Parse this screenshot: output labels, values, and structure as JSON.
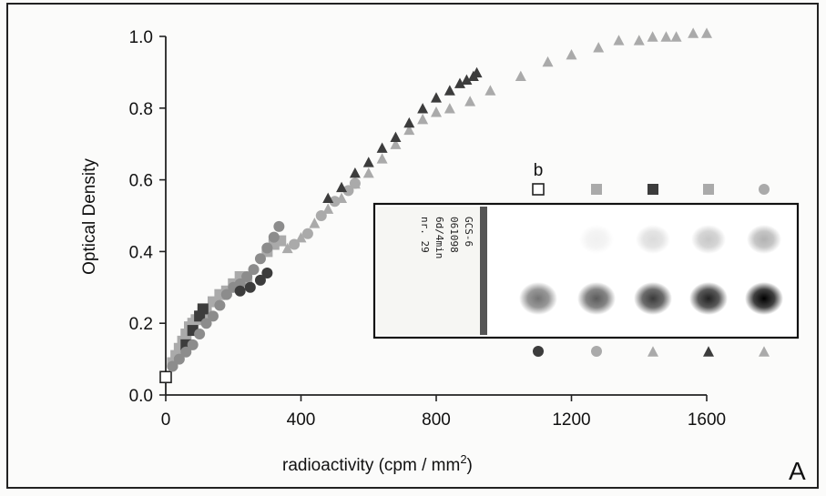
{
  "chart_data": {
    "type": "scatter",
    "xlabel_main": "radioactivity (cpm / mm",
    "xlabel_sup": "2",
    "xlabel_close": ")",
    "ylabel": "Optical Density",
    "panel_label": "A",
    "xlim": [
      0,
      1700
    ],
    "ylim": [
      0,
      1.0
    ],
    "x_ticks": [
      0,
      400,
      800,
      1200,
      1600
    ],
    "x_tick_labels": [
      "0",
      "400",
      "800",
      "1200",
      "1600"
    ],
    "y_ticks": [
      0,
      0.2,
      0.4,
      0.6,
      0.8,
      1.0
    ],
    "y_tick_labels": [
      "0.0",
      "0.2",
      "0.4",
      "0.6",
      "0.8",
      "1.0"
    ],
    "colors": {
      "light": "#aaaaaa",
      "mid": "#8c8c8c",
      "dark": "#3c3c3c",
      "open": "#ffffff"
    },
    "series": [
      {
        "marker": "open-square",
        "color": "open",
        "points": [
          [
            0,
            0.05
          ]
        ]
      },
      {
        "marker": "square",
        "color": "light",
        "points": [
          [
            20,
            0.09
          ],
          [
            30,
            0.11
          ],
          [
            40,
            0.13
          ],
          [
            50,
            0.15
          ],
          [
            60,
            0.17
          ],
          [
            70,
            0.19
          ],
          [
            80,
            0.2
          ],
          [
            90,
            0.21
          ],
          [
            100,
            0.22
          ],
          [
            110,
            0.23
          ],
          [
            120,
            0.24
          ],
          [
            140,
            0.26
          ],
          [
            160,
            0.28
          ],
          [
            180,
            0.29
          ],
          [
            200,
            0.31
          ],
          [
            220,
            0.33
          ],
          [
            240,
            0.32
          ],
          [
            300,
            0.4
          ],
          [
            320,
            0.42
          ],
          [
            340,
            0.43
          ]
        ]
      },
      {
        "marker": "square",
        "color": "dark",
        "points": [
          [
            60,
            0.14
          ],
          [
            80,
            0.18
          ],
          [
            100,
            0.22
          ],
          [
            110,
            0.24
          ]
        ]
      },
      {
        "marker": "circle",
        "color": "mid",
        "points": [
          [
            20,
            0.08
          ],
          [
            40,
            0.1
          ],
          [
            60,
            0.12
          ],
          [
            80,
            0.14
          ],
          [
            100,
            0.17
          ],
          [
            120,
            0.2
          ],
          [
            140,
            0.22
          ],
          [
            160,
            0.25
          ],
          [
            180,
            0.28
          ],
          [
            200,
            0.3
          ],
          [
            220,
            0.31
          ],
          [
            240,
            0.33
          ],
          [
            260,
            0.35
          ],
          [
            280,
            0.38
          ],
          [
            300,
            0.41
          ],
          [
            320,
            0.44
          ],
          [
            335,
            0.47
          ]
        ]
      },
      {
        "marker": "circle",
        "color": "dark",
        "points": [
          [
            220,
            0.29
          ],
          [
            250,
            0.3
          ],
          [
            280,
            0.32
          ],
          [
            300,
            0.34
          ]
        ]
      },
      {
        "marker": "circle",
        "color": "light",
        "points": [
          [
            380,
            0.42
          ],
          [
            420,
            0.45
          ],
          [
            460,
            0.5
          ],
          [
            500,
            0.54
          ],
          [
            540,
            0.57
          ],
          [
            560,
            0.59
          ]
        ]
      },
      {
        "marker": "triangle",
        "color": "light",
        "points": [
          [
            360,
            0.41
          ],
          [
            400,
            0.44
          ],
          [
            440,
            0.48
          ],
          [
            480,
            0.52
          ],
          [
            520,
            0.55
          ],
          [
            560,
            0.59
          ],
          [
            600,
            0.62
          ],
          [
            640,
            0.66
          ],
          [
            680,
            0.7
          ],
          [
            720,
            0.74
          ],
          [
            760,
            0.77
          ],
          [
            800,
            0.79
          ],
          [
            840,
            0.8
          ],
          [
            900,
            0.82
          ],
          [
            960,
            0.85
          ],
          [
            1050,
            0.89
          ],
          [
            1130,
            0.93
          ],
          [
            1200,
            0.95
          ],
          [
            1280,
            0.97
          ],
          [
            1340,
            0.99
          ],
          [
            1400,
            0.99
          ],
          [
            1440,
            1.0
          ],
          [
            1480,
            1.0
          ],
          [
            1510,
            1.0
          ],
          [
            1560,
            1.01
          ],
          [
            1600,
            1.01
          ]
        ]
      },
      {
        "marker": "triangle",
        "color": "dark",
        "points": [
          [
            480,
            0.55
          ],
          [
            520,
            0.58
          ],
          [
            560,
            0.62
          ],
          [
            600,
            0.65
          ],
          [
            640,
            0.69
          ],
          [
            680,
            0.72
          ],
          [
            720,
            0.76
          ],
          [
            760,
            0.8
          ],
          [
            800,
            0.83
          ],
          [
            840,
            0.85
          ],
          [
            870,
            0.87
          ],
          [
            890,
            0.88
          ],
          [
            910,
            0.89
          ],
          [
            920,
            0.9
          ]
        ]
      }
    ]
  },
  "inset": {
    "label_b": "b",
    "film_label_lines": [
      "GCS-6",
      "061098",
      "6d/4min",
      "nr.   29"
    ],
    "top_markers": [
      {
        "marker": "open-square",
        "color": "open"
      },
      {
        "marker": "square",
        "color": "light"
      },
      {
        "marker": "square",
        "color": "dark"
      },
      {
        "marker": "square",
        "color": "light"
      },
      {
        "marker": "circle",
        "color": "light"
      }
    ],
    "bottom_markers": [
      {
        "marker": "circle",
        "color": "dark"
      },
      {
        "marker": "circle",
        "color": "light"
      },
      {
        "marker": "triangle",
        "color": "light"
      },
      {
        "marker": "triangle",
        "color": "dark"
      },
      {
        "marker": "triangle",
        "color": "light"
      }
    ],
    "top_spot_intensity": [
      0.0,
      0.06,
      0.14,
      0.22,
      0.3
    ],
    "bottom_spot_intensity": [
      0.3,
      0.45,
      0.65,
      0.8,
      1.0
    ]
  }
}
